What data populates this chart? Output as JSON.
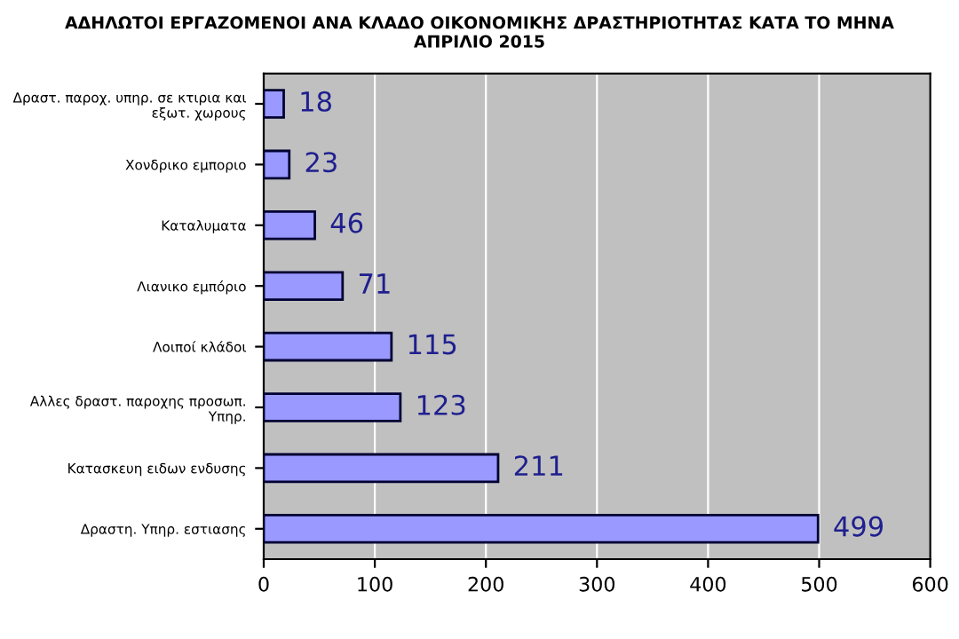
{
  "chart_data": {
    "type": "bar",
    "orientation": "horizontal",
    "title": "ΑΔΗΛΩΤΟΙ ΕΡΓΑΖΟΜΕΝΟΙ ΑΝΑ ΚΛΑΔΟ ΟΙΚΟΝΟΜΙΚΗΣ ΔΡΑΣΤΗΡΙΟΤΗΤΑΣ ΚΑΤΑ ΤΟ ΜΗΝΑ\nΑΠΡΙΛΙΟ 2015",
    "categories": [
      "Δραστ. παροχ. υπηρ. σε κτιρια και\nεξωτ. χωρους",
      "Χονδρικο εμποριο",
      "Καταλυματα",
      "Λιανικο εμπόριο",
      "Λοιποί κλάδοι",
      "Αλλες δραστ. παροχης προσωπ.\nΥπηρ.",
      "Κατασκευη ειδων ενδυσης",
      "Δραστη. Υπηρ. εστιασης"
    ],
    "values": [
      18,
      23,
      46,
      71,
      115,
      123,
      211,
      499
    ],
    "color": "#9999ff",
    "xlim": [
      0,
      600
    ],
    "xticks": [
      0,
      100,
      200,
      300,
      400,
      500,
      600
    ],
    "grid": "x",
    "data_labels": true
  }
}
